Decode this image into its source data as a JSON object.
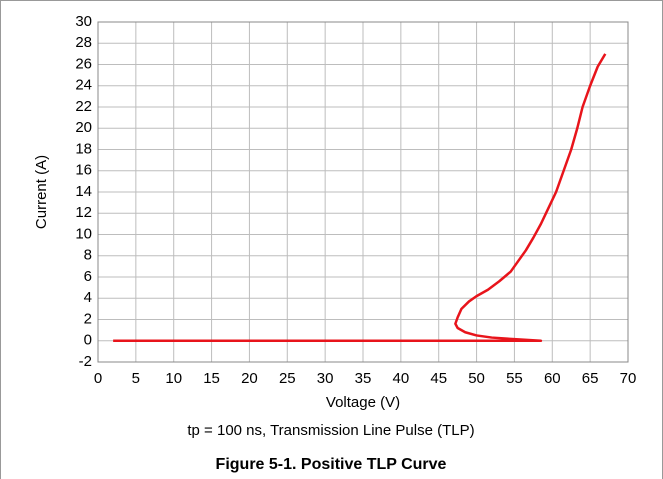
{
  "chart_data": {
    "type": "line",
    "title": "Figure 5-1. Positive TLP Curve",
    "subtitle": "tp = 100 ns, Transmission Line Pulse (TLP)",
    "x_label": "Voltage (V)",
    "y_label": "Current (A)",
    "color": "#e8141b",
    "x": [
      2,
      58.5,
      55,
      52,
      50,
      48.5,
      47.5,
      47.2,
      47.5,
      48,
      49,
      50,
      51.5,
      53,
      54.5,
      55.5,
      56.5,
      57.5,
      58.5,
      59.5,
      60.5,
      61.5,
      62.5,
      63.3,
      64,
      65,
      66,
      67
    ],
    "values": [
      0,
      0,
      0.15,
      0.3,
      0.5,
      0.8,
      1.2,
      1.6,
      2.2,
      3,
      3.7,
      4.2,
      4.8,
      5.6,
      6.5,
      7.5,
      8.5,
      9.7,
      11,
      12.5,
      14,
      16,
      18,
      20,
      22,
      24,
      25.8,
      27
    ],
    "xlim": [
      0,
      70
    ],
    "xticks": [
      0,
      5,
      10,
      15,
      20,
      25,
      30,
      35,
      40,
      45,
      50,
      55,
      60,
      65,
      70
    ],
    "ylim": [
      -2,
      30
    ],
    "yticks": [
      -2,
      0,
      2,
      4,
      6,
      8,
      10,
      12,
      14,
      16,
      18,
      20,
      22,
      24,
      26,
      28,
      30
    ],
    "grid": true
  }
}
